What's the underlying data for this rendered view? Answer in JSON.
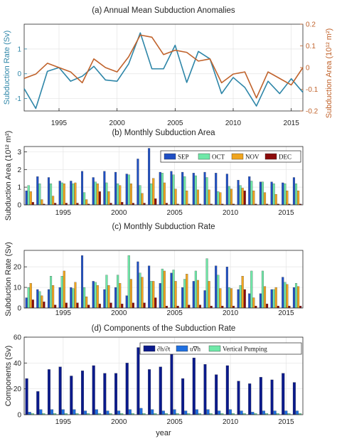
{
  "chart_data": [
    {
      "type": "line",
      "title": "(a) Annual Mean Subduction Anomalies",
      "ylabel_left": "Subduction Rate (Sv)",
      "ylabel_right": "Subduction Area (10¹² m²)",
      "ylim_left": [
        -1.5,
        2
      ],
      "ylim_right": [
        -0.2,
        0.2
      ],
      "xlim": [
        1992,
        2016
      ],
      "xticks": [
        "1995",
        "2000",
        "2005",
        "2010",
        "2015"
      ],
      "yticks_left": [
        "-1",
        "0",
        "1"
      ],
      "yticks_right": [
        "-0.2",
        "-0.1",
        "0",
        "0.1",
        "0.2"
      ],
      "x": [
        1992,
        1993,
        1994,
        1995,
        1996,
        1997,
        1998,
        1999,
        2000,
        2001,
        2002,
        2003,
        2004,
        2005,
        2006,
        2007,
        2008,
        2009,
        2010,
        2011,
        2012,
        2013,
        2014,
        2015,
        2016
      ],
      "series": [
        {
          "axis": "left",
          "color": "#2e86a8",
          "values": [
            -0.6,
            -1.4,
            0.1,
            0.25,
            -0.3,
            -0.1,
            0.3,
            -0.25,
            -0.3,
            0.4,
            1.65,
            0.2,
            0.2,
            1.15,
            -0.35,
            0.9,
            0.6,
            -0.8,
            -0.15,
            -0.55,
            -1.3,
            -0.3,
            -0.8,
            -0.2,
            -0.75
          ]
        },
        {
          "axis": "right",
          "color": "#c0622b",
          "values": [
            -0.05,
            -0.03,
            0.02,
            0.0,
            -0.02,
            -0.07,
            0.04,
            0.0,
            -0.02,
            0.05,
            0.15,
            0.14,
            0.06,
            0.08,
            0.07,
            0.03,
            0.04,
            -0.07,
            -0.03,
            -0.02,
            -0.14,
            -0.02,
            -0.05,
            -0.08,
            0.0
          ]
        }
      ]
    },
    {
      "type": "bar",
      "title": "(b) Monthly Subduction Area",
      "ylabel": "Subduction Area (10¹² m²)",
      "ylim": [
        0,
        3.3
      ],
      "yticks": [
        "0",
        "1",
        "2",
        "3"
      ],
      "xticks": [
        "1995",
        "2000",
        "2005",
        "2010",
        "2015"
      ],
      "categories": [
        1992,
        1993,
        1994,
        1995,
        1996,
        1997,
        1998,
        1999,
        2000,
        2001,
        2002,
        2003,
        2004,
        2005,
        2006,
        2007,
        2008,
        2009,
        2010,
        2011,
        2012,
        2013,
        2014,
        2015,
        2016
      ],
      "legend": "top-right",
      "series": [
        {
          "name": "SEP",
          "color": "#1f4fc4",
          "values": [
            0.8,
            1.6,
            1.55,
            1.35,
            1.35,
            1.9,
            1.55,
            1.9,
            1.85,
            1.75,
            2.6,
            3.2,
            1.85,
            1.9,
            1.85,
            1.8,
            1.85,
            1.8,
            1.75,
            1.4,
            1.6,
            1.3,
            1.3,
            1.25,
            1.55
          ]
        },
        {
          "name": "OCT",
          "color": "#6fe8a8",
          "values": [
            1.1,
            1.2,
            1.2,
            1.25,
            1.2,
            0.7,
            1.3,
            1.25,
            1.2,
            1.7,
            1.1,
            1.2,
            1.8,
            1.7,
            1.6,
            1.65,
            1.55,
            0.75,
            1.05,
            1.1,
            1.35,
            1.3,
            1.2,
            1.2,
            1.2
          ]
        },
        {
          "name": "NOV",
          "color": "#f0a51e",
          "values": [
            0.75,
            0.3,
            0.5,
            1.2,
            1.25,
            0.3,
            1.2,
            0.75,
            1.1,
            1.2,
            0.65,
            1.5,
            1.25,
            0.9,
            0.8,
            0.85,
            0.85,
            0.7,
            0.9,
            0.95,
            0.8,
            0.7,
            0.6,
            0.8,
            0.8
          ]
        },
        {
          "name": "DEC",
          "color": "#8b0a0a",
          "values": [
            0.15,
            0.05,
            0.1,
            0.1,
            0.1,
            0.05,
            0.75,
            0.1,
            0.15,
            0.1,
            0.1,
            0.35,
            0.1,
            0.05,
            0.05,
            0.05,
            0.05,
            0.05,
            0.05,
            0.8,
            0.05,
            0.05,
            0.05,
            0.05,
            0.05
          ]
        }
      ]
    },
    {
      "type": "bar",
      "title": "(c) Monthly Subduction Rate",
      "ylabel": "Subduction Rate (Sv)",
      "ylim": [
        0,
        28
      ],
      "yticks": [
        "0",
        "10",
        "20"
      ],
      "xticks": [
        "1995",
        "2000",
        "2005",
        "2010",
        "2015"
      ],
      "categories": [
        1992,
        1993,
        1994,
        1995,
        1996,
        1997,
        1998,
        1999,
        2000,
        2001,
        2002,
        2003,
        2004,
        2005,
        2006,
        2007,
        2008,
        2009,
        2010,
        2011,
        2012,
        2013,
        2014,
        2015,
        2016
      ],
      "series": [
        {
          "name": "SEP",
          "color": "#1f4fc4",
          "values": [
            5,
            9,
            9,
            10,
            10,
            25.5,
            13,
            9,
            10,
            6,
            22.5,
            20.5,
            12,
            17,
            10,
            13,
            8.5,
            20.5,
            20,
            9,
            7,
            7,
            9,
            15,
            10
          ]
        },
        {
          "name": "OCT",
          "color": "#6fe8a8",
          "values": [
            10,
            8,
            15.5,
            15.5,
            9.5,
            10,
            12.5,
            16,
            16,
            25.5,
            17,
            13,
            19,
            18.5,
            14,
            18,
            24,
            16,
            10,
            11,
            18,
            18,
            9,
            12.5,
            12
          ]
        },
        {
          "name": "NOV",
          "color": "#f0a51e",
          "values": [
            12,
            6,
            11,
            18,
            12.5,
            5.5,
            11,
            11,
            12,
            14,
            15,
            13,
            18,
            13,
            16.5,
            13.5,
            13,
            9.5,
            9.5,
            15.5,
            5,
            10.5,
            10,
            11.5,
            10.5
          ]
        },
        {
          "name": "DEC",
          "color": "#8b0a0a",
          "values": [
            4,
            3,
            1.5,
            2.5,
            2.5,
            1.5,
            2,
            2.5,
            2,
            2.5,
            2.5,
            5,
            1,
            1,
            1.5,
            1.5,
            1,
            1,
            1,
            9,
            1,
            2,
            1,
            1,
            1
          ]
        }
      ]
    },
    {
      "type": "bar",
      "title": "(d) Components of the Subduction Rate",
      "ylabel": "Components (Sv)",
      "xlabel": "year",
      "ylim": [
        0,
        60
      ],
      "yticks": [
        "0",
        "20",
        "40",
        "60"
      ],
      "xticks": [
        "1995",
        "2000",
        "2005",
        "2010",
        "2015"
      ],
      "categories": [
        1992,
        1993,
        1994,
        1995,
        1996,
        1997,
        1998,
        1999,
        2000,
        2001,
        2002,
        2003,
        2004,
        2005,
        2006,
        2007,
        2008,
        2009,
        2010,
        2011,
        2012,
        2013,
        2014,
        2015,
        2016
      ],
      "legend": "top-right",
      "series": [
        {
          "name": "∂h/∂t",
          "color": "#0a1a8c",
          "values": [
            28,
            18,
            35,
            37,
            30,
            34,
            38,
            32,
            32,
            40,
            52,
            35,
            37,
            47,
            28,
            44,
            39,
            31,
            38,
            26,
            24,
            29,
            27,
            32,
            25
          ]
        },
        {
          "name": "u∇h",
          "color": "#1f6fe0",
          "values": [
            2,
            4,
            4,
            4,
            4,
            3,
            4,
            3,
            3,
            4,
            5,
            4,
            3,
            4,
            3,
            4,
            4,
            3,
            4,
            3,
            2,
            3,
            3,
            3,
            3
          ]
        },
        {
          "name": "Vertical Pumping",
          "color": "#6fe8a8",
          "values": [
            1,
            1,
            1,
            1,
            1,
            1,
            1,
            1,
            1,
            1,
            1,
            1,
            1,
            1,
            1,
            1,
            1,
            1,
            1,
            1,
            1,
            1,
            1,
            1,
            1
          ]
        }
      ]
    }
  ]
}
